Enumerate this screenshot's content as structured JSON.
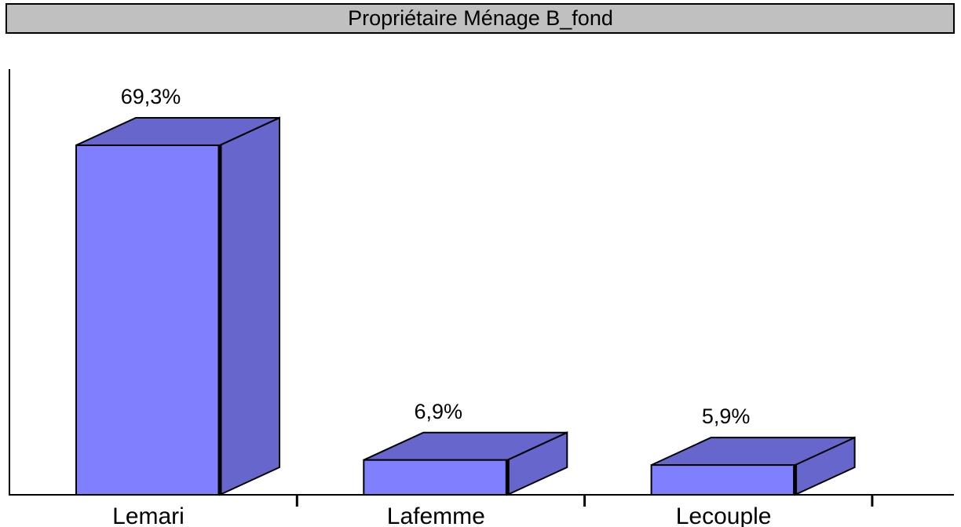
{
  "chart_data": {
    "type": "bar3d",
    "title": "Propriétaire Ménage B_fond",
    "categories": [
      "Lemari",
      "Lafemme",
      "Lecouple"
    ],
    "values": [
      69.3,
      6.9,
      5.9
    ],
    "value_labels": [
      "69,3%",
      "6,9%",
      "5,9%"
    ],
    "color": "#8080ff",
    "side_color": "#6666cc",
    "ylim": [
      0,
      84.4
    ]
  }
}
